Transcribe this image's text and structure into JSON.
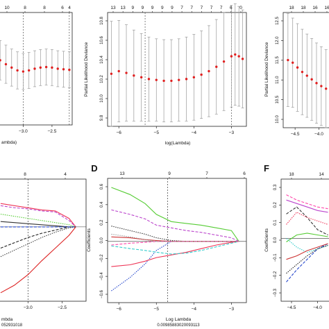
{
  "panels": {
    "b": {
      "ylabel": "Partial Likelihood Deviance",
      "xlabel": "log(Lambda)",
      "top_ticks": [
        "13",
        "13",
        "9",
        "9",
        "9",
        "9",
        "9",
        "7",
        "7",
        "7",
        "7",
        "7",
        "6",
        "0"
      ],
      "y_ticks": [
        "9.8",
        "10.0",
        "10.2",
        "10.4",
        "10.6",
        "10.8"
      ],
      "x_ticks": [
        "−6",
        "−5",
        "−4",
        "−3"
      ]
    },
    "c": {
      "ylabel": "Partial Likelihood Deviance",
      "top_ticks": [
        "18",
        "18",
        "16",
        "16",
        "16"
      ],
      "y_ticks": [
        "10.0",
        "10.5",
        "11.0",
        "11.5",
        "12.0",
        "12.5"
      ],
      "x_ticks": [
        "−4.5",
        "−4.0"
      ]
    },
    "a": {
      "top_ticks": [
        "10",
        "8",
        "8",
        "6",
        "4"
      ],
      "x_ticks": [
        "−3.0",
        "−2.5"
      ],
      "xlabel_partial": "ambda)"
    },
    "d": {
      "letter": "D",
      "ylabel": "Coefficients",
      "xlabel": "Log Lambda",
      "caption": "0.00985883020093113",
      "top_ticks": [
        "13",
        "9",
        "7",
        "6"
      ],
      "y_ticks": [
        "0.6",
        "0.4",
        "0.2",
        "0.0",
        "−0.2",
        "−0.4",
        "−0.6"
      ],
      "x_ticks": [
        "−6",
        "−5",
        "−4",
        "−3"
      ]
    },
    "f": {
      "letter": "F",
      "ylabel": "Coefficients",
      "top_ticks": [
        "18",
        "14"
      ],
      "y_ticks": [
        "0.3",
        "0.2",
        "0.1",
        "0.0",
        "−0.1",
        "−0.2",
        "−0.3"
      ],
      "x_ticks": [
        "−4.5",
        "−4.0"
      ]
    },
    "e": {
      "top_ticks": [
        "8",
        "4"
      ],
      "x_ticks": [
        "−3.0",
        "−2.5"
      ],
      "xlabel_partial": "mbda",
      "caption_partial": "052931018"
    }
  },
  "chart_data": [
    {
      "type": "scatter",
      "panel": "b",
      "ylabel": "Partial Likelihood Deviance",
      "xlabel": "log(Lambda)",
      "xlim": [
        -6.3,
        -2.6
      ],
      "ylim": [
        9.65,
        10.95
      ],
      "x": [
        -6.2,
        -6.0,
        -5.8,
        -5.6,
        -5.4,
        -5.2,
        -5.0,
        -4.8,
        -4.6,
        -4.4,
        -4.2,
        -4.0,
        -3.8,
        -3.6,
        -3.4,
        -3.2,
        -3.0,
        -2.9,
        -2.8,
        -2.7
      ],
      "y": [
        10.25,
        10.28,
        10.26,
        10.23,
        10.21,
        10.19,
        10.18,
        10.17,
        10.17,
        10.18,
        10.19,
        10.21,
        10.24,
        10.28,
        10.33,
        10.39,
        10.45,
        10.47,
        10.45,
        10.42
      ],
      "err": [
        0.6,
        0.58,
        0.55,
        0.52,
        0.5,
        0.48,
        0.47,
        0.47,
        0.47,
        0.47,
        0.48,
        0.49,
        0.5,
        0.52,
        0.54,
        0.56,
        0.58,
        0.58,
        0.57,
        0.56
      ],
      "vlines": [
        -5.3,
        -3.0
      ],
      "grid": false
    },
    {
      "type": "scatter",
      "panel": "c",
      "ylabel": "Partial Likelihood Deviance",
      "xlim": [
        -4.75,
        -3.7
      ],
      "ylim": [
        9.8,
        12.9
      ],
      "x": [
        -4.65,
        -4.55,
        -4.45,
        -4.35,
        -4.25,
        -4.15,
        -4.05,
        -3.95,
        -3.85,
        -3.75
      ],
      "y": [
        11.62,
        11.55,
        11.42,
        11.3,
        11.2,
        11.1,
        11.0,
        10.92,
        10.85,
        10.8
      ],
      "err": [
        1.25,
        1.2,
        1.18,
        1.15,
        1.12,
        1.1,
        1.08,
        1.06,
        1.05,
        1.04
      ],
      "grid": false
    },
    {
      "type": "scatter",
      "panel": "a",
      "xlim": [
        -3.45,
        -2.15
      ],
      "ylim": [
        10.0,
        12.0
      ],
      "x": [
        -3.4,
        -3.3,
        -3.2,
        -3.1,
        -3.0,
        -2.9,
        -2.8,
        -2.7,
        -2.6,
        -2.5,
        -2.4,
        -2.3,
        -2.2
      ],
      "y": [
        11.15,
        11.08,
        11.02,
        10.97,
        10.95,
        10.97,
        11.0,
        11.02,
        11.03,
        11.02,
        11.0,
        10.99,
        10.98
      ],
      "err": [
        0.35,
        0.34,
        0.33,
        0.33,
        0.32,
        0.32,
        0.32,
        0.32,
        0.32,
        0.32,
        0.32,
        0.32,
        0.32
      ],
      "vlines": [
        -3.0,
        -2.2
      ],
      "grid": false
    },
    {
      "type": "line",
      "panel": "d",
      "xlabel": "Log Lambda",
      "ylabel": "Coefficients",
      "xlim": [
        -6.3,
        -2.6
      ],
      "ylim": [
        -0.68,
        0.7
      ],
      "x": [
        -6.2,
        -5.7,
        -5.3,
        -5.0,
        -4.6,
        -4.2,
        -3.8,
        -3.4,
        -3.0,
        -2.8
      ],
      "series": [
        {
          "color": "#55cc33",
          "values": [
            0.6,
            0.52,
            0.42,
            0.3,
            0.22,
            0.2,
            0.18,
            0.15,
            0.12,
            0.0
          ]
        },
        {
          "color": "#bb44cc",
          "values": [
            0.35,
            0.3,
            0.25,
            0.18,
            0.15,
            0.12,
            0.1,
            0.07,
            0.04,
            0.0
          ]
        },
        {
          "color": "#2244cc",
          "values": [
            -0.55,
            -0.4,
            -0.25,
            -0.1,
            0.0,
            0.0,
            0.0,
            0.0,
            0.0,
            0.0
          ]
        },
        {
          "color": "#ee3355",
          "values": [
            -0.28,
            -0.26,
            -0.22,
            -0.18,
            -0.15,
            -0.12,
            -0.08,
            -0.04,
            -0.01,
            0.0
          ]
        },
        {
          "color": "#33cccc",
          "values": [
            -0.05,
            -0.08,
            -0.1,
            -0.12,
            -0.14,
            -0.13,
            -0.1,
            -0.06,
            -0.02,
            0.0
          ]
        },
        {
          "color": "#333333",
          "values": [
            0.17,
            0.12,
            0.08,
            0.04,
            0.01,
            0.0,
            0.0,
            0.0,
            0.0,
            0.0
          ]
        },
        {
          "color": "#cc3333",
          "values": [
            0.05,
            0.04,
            0.02,
            0.01,
            0.0,
            0.0,
            0.0,
            0.0,
            0.0,
            0.0
          ]
        },
        {
          "color": "#ff44aa",
          "values": [
            -0.04,
            -0.02,
            -0.01,
            0.0,
            0.0,
            0.0,
            0.0,
            0.0,
            0.0,
            0.0
          ]
        },
        {
          "color": "#999999",
          "values": [
            0.08,
            0.05,
            0.02,
            0.0,
            0.0,
            0.0,
            0.0,
            0.0,
            0.0,
            0.0
          ]
        }
      ],
      "vlines": [
        -4.7
      ],
      "grid": false
    },
    {
      "type": "line",
      "panel": "f",
      "ylabel": "Coefficients",
      "xlim": [
        -4.7,
        -3.7
      ],
      "ylim": [
        -0.36,
        0.34
      ],
      "x": [
        -4.6,
        -4.4,
        -4.2,
        -4.0,
        -3.8
      ],
      "series": [
        {
          "color": "#bb44cc",
          "values": [
            0.22,
            0.2,
            0.18,
            0.16,
            0.15
          ]
        },
        {
          "color": "#333333",
          "values": [
            0.14,
            0.18,
            0.12,
            0.05,
            0.02
          ]
        },
        {
          "color": "#ee3355",
          "values": [
            0.08,
            0.15,
            0.12,
            0.1,
            0.08
          ]
        },
        {
          "color": "#55cc33",
          "values": [
            -0.02,
            0.02,
            0.03,
            0.02,
            0.01
          ]
        },
        {
          "color": "#2244cc",
          "values": [
            -0.25,
            -0.18,
            -0.12,
            -0.06,
            -0.03
          ]
        },
        {
          "color": "#33cccc",
          "values": [
            0.0,
            -0.05,
            -0.08,
            -0.06,
            -0.04
          ]
        },
        {
          "color": "#cc3333",
          "values": [
            -0.12,
            -0.1,
            -0.07,
            -0.05,
            -0.03
          ]
        },
        {
          "color": "#ff44aa",
          "values": [
            0.25,
            0.22,
            0.2,
            0.18,
            0.17
          ]
        },
        {
          "color": "#222222",
          "values": [
            -0.2,
            -0.15,
            -0.1,
            -0.06,
            -0.04
          ]
        }
      ],
      "grid": false
    },
    {
      "type": "line",
      "panel": "e",
      "xlim": [
        -3.45,
        -2.15
      ],
      "ylim": [
        -0.7,
        0.45
      ],
      "x": [
        -3.4,
        -3.2,
        -3.0,
        -2.8,
        -2.6,
        -2.4,
        -2.3
      ],
      "series": [
        {
          "color": "#ee3355",
          "values": [
            0.22,
            0.2,
            0.18,
            0.16,
            0.15,
            0.08,
            0.0
          ]
        },
        {
          "color": "#bb44cc",
          "values": [
            0.2,
            0.18,
            0.17,
            0.15,
            0.14,
            0.06,
            0.0
          ]
        },
        {
          "color": "#55cc33",
          "values": [
            0.12,
            0.1,
            0.08,
            0.06,
            0.04,
            0.02,
            0.0
          ]
        },
        {
          "color": "#333333",
          "values": [
            0.05,
            0.04,
            0.03,
            0.02,
            0.01,
            0.0,
            0.0
          ]
        },
        {
          "color": "#222222",
          "values": [
            -0.2,
            -0.15,
            -0.1,
            -0.06,
            -0.03,
            0.0,
            0.0
          ]
        },
        {
          "color": "#444444",
          "values": [
            -0.28,
            -0.22,
            -0.16,
            -0.1,
            -0.05,
            -0.01,
            0.0
          ]
        },
        {
          "color": "#dd2222",
          "values": [
            -0.62,
            -0.55,
            -0.45,
            -0.32,
            -0.2,
            -0.08,
            0.0
          ]
        },
        {
          "color": "#2244cc",
          "values": [
            0.0,
            0.0,
            0.0,
            0.0,
            0.0,
            0.0,
            0.0
          ]
        }
      ],
      "vlines": [
        -3.0
      ],
      "grid": false
    }
  ]
}
